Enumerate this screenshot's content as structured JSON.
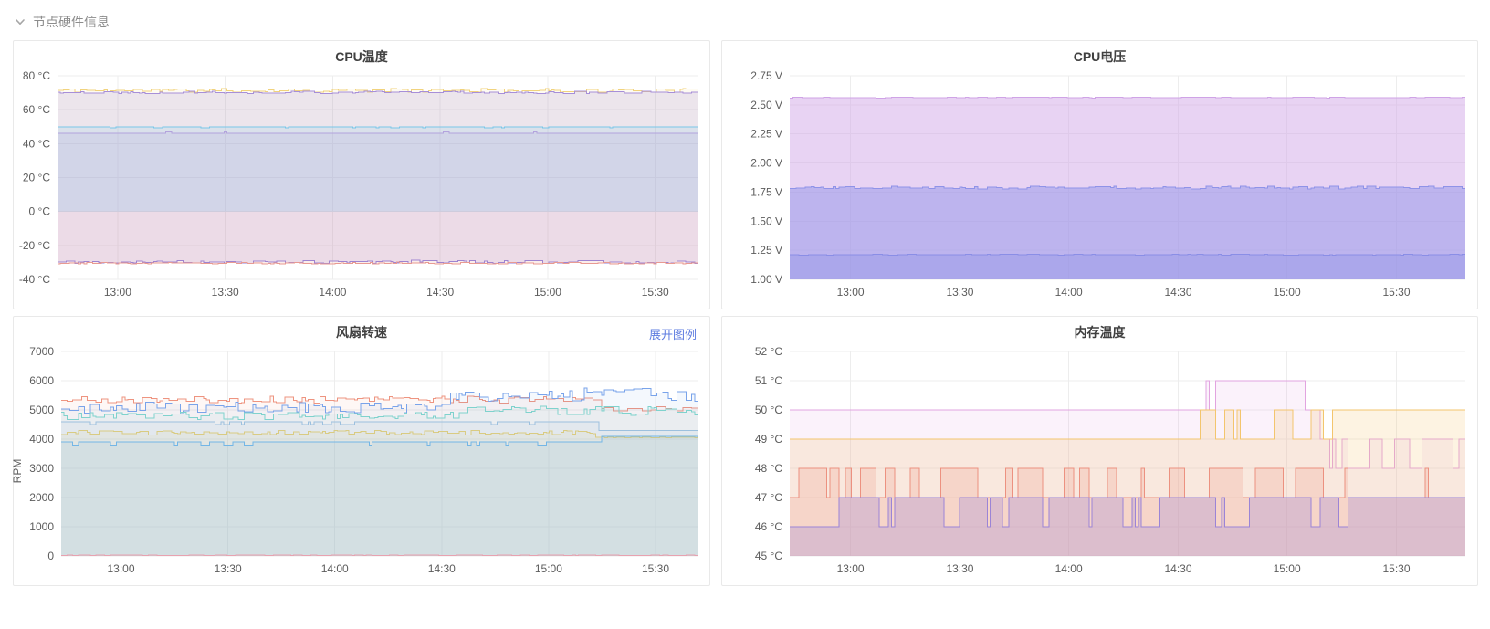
{
  "header": {
    "title": "节点硬件信息",
    "collapse_icon": "chevron-down"
  },
  "colors": {
    "link": "#5e7ce0",
    "title": "#404040",
    "axis_text": "#5c5c5c",
    "grid": "#ededed"
  },
  "chart_data": [
    {
      "type": "area",
      "title": "CPU温度",
      "ylim": [
        -40,
        80
      ],
      "yticks": [
        {
          "v": 80,
          "label": "80 °C"
        },
        {
          "v": 60,
          "label": "60 °C"
        },
        {
          "v": 40,
          "label": "40 °C"
        },
        {
          "v": 20,
          "label": "20 °C"
        },
        {
          "v": 0,
          "label": "0 °C"
        },
        {
          "v": -20,
          "label": "-20 °C"
        },
        {
          "v": -40,
          "label": "-40 °C"
        }
      ],
      "xticks": [
        {
          "f": 0.094,
          "label": "13:00"
        },
        {
          "f": 0.262,
          "label": "13:30"
        },
        {
          "f": 0.43,
          "label": "14:00"
        },
        {
          "f": 0.598,
          "label": "14:30"
        },
        {
          "f": 0.766,
          "label": "15:00"
        },
        {
          "f": 0.934,
          "label": "15:30"
        }
      ],
      "series": [
        {
          "name": "cpu-temp-yellow-high",
          "color": "#f1d37d",
          "fill_opacity": 0.1,
          "fill_to": 0,
          "kind": "noisy",
          "seed": 11,
          "levels": [
            {
              "until": 1,
              "base": 71.3,
              "noise": 1.1
            }
          ]
        },
        {
          "name": "cpu-temp-purple-high",
          "color": "#a78fd8",
          "fill_opacity": 0.2,
          "fill_to": 0,
          "kind": "noisy",
          "seed": 22,
          "levels": [
            {
              "until": 1,
              "base": 70.2,
              "noise": 0.7
            }
          ]
        },
        {
          "name": "cpu-temp-cyan-mid",
          "color": "#79c6e9",
          "fill_opacity": 0.15,
          "fill_to": 0,
          "kind": "toggle",
          "seed": 33,
          "levels": [
            {
              "until": 1,
              "lo": 49.2,
              "hi": 50,
              "p": 0.85
            }
          ]
        },
        {
          "name": "cpu-temp-purple-mid",
          "color": "#b3a3dd",
          "fill_opacity": 0.2,
          "fill_to": 0,
          "kind": "toggle",
          "seed": 44,
          "levels": [
            {
              "until": 1,
              "lo": 46.2,
              "hi": 47,
              "p": 0.08
            }
          ]
        },
        {
          "name": "cpu-temp-purple-low",
          "color": "#8f7fdf",
          "fill_opacity": 0.16,
          "fill_to": 0,
          "kind": "noisy",
          "seed": 55,
          "levels": [
            {
              "until": 1,
              "base": -29.7,
              "noise": 0.9
            }
          ]
        },
        {
          "name": "cpu-temp-red-low",
          "color": "#e89a92",
          "fill_opacity": 0.18,
          "fill_to": 0,
          "kind": "noisy",
          "seed": 66,
          "levels": [
            {
              "until": 1,
              "base": -30.4,
              "noise": 0.5
            }
          ]
        }
      ]
    },
    {
      "type": "area",
      "title": "CPU电压",
      "ylim": [
        1.0,
        2.75
      ],
      "yticks": [
        {
          "v": 2.75,
          "label": "2.75 V"
        },
        {
          "v": 2.5,
          "label": "2.50 V"
        },
        {
          "v": 2.25,
          "label": "2.25 V"
        },
        {
          "v": 2.0,
          "label": "2.00 V"
        },
        {
          "v": 1.75,
          "label": "1.75 V"
        },
        {
          "v": 1.5,
          "label": "1.50 V"
        },
        {
          "v": 1.25,
          "label": "1.25 V"
        },
        {
          "v": 1.0,
          "label": "1.00 V"
        }
      ],
      "xticks": [
        {
          "f": 0.09,
          "label": "13:00"
        },
        {
          "f": 0.252,
          "label": "13:30"
        },
        {
          "f": 0.413,
          "label": "14:00"
        },
        {
          "f": 0.575,
          "label": "14:30"
        },
        {
          "f": 0.736,
          "label": "15:00"
        },
        {
          "f": 0.898,
          "label": "15:30"
        }
      ],
      "series": [
        {
          "name": "cpu-volt-2v56",
          "color": "#cfa3e6",
          "fill_opacity": 0.48,
          "kind": "noisy",
          "seed": 7,
          "levels": [
            {
              "until": 1,
              "base": 2.563,
              "noise": 0.004
            }
          ]
        },
        {
          "name": "cpu-volt-1v79",
          "color": "#8f93e8",
          "fill_opacity": 0.48,
          "kind": "noisy",
          "seed": 8,
          "levels": [
            {
              "until": 1,
              "base": 1.79,
              "noise": 0.012
            }
          ]
        },
        {
          "name": "cpu-volt-1v21",
          "color": "#8a8ee6",
          "fill_opacity": 0.35,
          "kind": "noisy",
          "seed": 9,
          "levels": [
            {
              "until": 1,
              "base": 1.212,
              "noise": 0.003
            }
          ]
        }
      ]
    },
    {
      "type": "area",
      "title": "风扇转速",
      "legend_link": "展开图例",
      "ylabel": "RPM",
      "ylim": [
        0,
        7000
      ],
      "yticks": [
        {
          "v": 7000,
          "label": "7000"
        },
        {
          "v": 6000,
          "label": "6000"
        },
        {
          "v": 5000,
          "label": "5000"
        },
        {
          "v": 4000,
          "label": "4000"
        },
        {
          "v": 3000,
          "label": "3000"
        },
        {
          "v": 2000,
          "label": "2000"
        },
        {
          "v": 1000,
          "label": "1000"
        },
        {
          "v": 0,
          "label": "0"
        }
      ],
      "xticks": [
        {
          "f": 0.094,
          "label": "13:00"
        },
        {
          "f": 0.262,
          "label": "13:30"
        },
        {
          "f": 0.43,
          "label": "14:00"
        },
        {
          "f": 0.598,
          "label": "14:30"
        },
        {
          "f": 0.766,
          "label": "15:00"
        },
        {
          "f": 0.934,
          "label": "15:30"
        }
      ],
      "series": [
        {
          "name": "fan-red",
          "color": "#ee9480",
          "fill_opacity": 0.08,
          "kind": "noisy",
          "seed": 21,
          "levels": [
            {
              "until": 0.84,
              "base": 5350,
              "noise": 130
            },
            {
              "until": 1,
              "base": 5030,
              "noise": 90
            }
          ]
        },
        {
          "name": "fan-blue",
          "color": "#79a3ea",
          "fill_opacity": 0.08,
          "kind": "noisy",
          "seed": 32,
          "levels": [
            {
              "until": 0.6,
              "base": 5080,
              "noise": 190
            },
            {
              "until": 1,
              "base": 5520,
              "noise": 230
            }
          ]
        },
        {
          "name": "fan-teal",
          "color": "#7fd2cd",
          "fill_opacity": 0.08,
          "kind": "noisy",
          "seed": 43,
          "levels": [
            {
              "until": 0.62,
              "base": 4790,
              "noise": 130
            },
            {
              "until": 1,
              "base": 4960,
              "noise": 170
            }
          ]
        },
        {
          "name": "fan-steelblue",
          "color": "#9cc0de",
          "fill_opacity": 0.1,
          "kind": "toggle",
          "seed": 54,
          "levels": [
            {
              "until": 0.84,
              "lo": 4500,
              "hi": 4600,
              "p": 0.9
            },
            {
              "until": 1,
              "lo": 4300,
              "hi": 4300,
              "p": 1
            }
          ]
        },
        {
          "name": "fan-yellow",
          "color": "#d9cb82",
          "fill_opacity": 0.1,
          "kind": "noisy",
          "seed": 65,
          "levels": [
            {
              "until": 0.84,
              "base": 4220,
              "noise": 80
            },
            {
              "until": 1,
              "base": 4060,
              "noise": 15
            }
          ]
        },
        {
          "name": "fan-blue-low",
          "color": "#73b6e6",
          "fill_opacity": 0.12,
          "kind": "toggle",
          "seed": 76,
          "levels": [
            {
              "until": 0.84,
              "lo": 3800,
              "hi": 3900,
              "p": 0.88
            },
            {
              "until": 1,
              "lo": 4100,
              "hi": 4100,
              "p": 1
            }
          ]
        },
        {
          "name": "fan-pink-zero",
          "color": "#e8a2b0",
          "fill_opacity": 0.15,
          "kind": "noisy",
          "seed": 87,
          "levels": [
            {
              "until": 1,
              "base": 25,
              "noise": 5
            }
          ]
        }
      ]
    },
    {
      "type": "area",
      "title": "内存温度",
      "ylim": [
        45,
        52
      ],
      "yticks": [
        {
          "v": 52,
          "label": "52 °C"
        },
        {
          "v": 51,
          "label": "51 °C"
        },
        {
          "v": 50,
          "label": "50 °C"
        },
        {
          "v": 49,
          "label": "49 °C"
        },
        {
          "v": 48,
          "label": "48 °C"
        },
        {
          "v": 47,
          "label": "47 °C"
        },
        {
          "v": 46,
          "label": "46 °C"
        },
        {
          "v": 45,
          "label": "45 °C"
        }
      ],
      "xticks": [
        {
          "f": 0.09,
          "label": "13:00"
        },
        {
          "f": 0.252,
          "label": "13:30"
        },
        {
          "f": 0.413,
          "label": "14:00"
        },
        {
          "f": 0.575,
          "label": "14:30"
        },
        {
          "f": 0.736,
          "label": "15:00"
        },
        {
          "f": 0.898,
          "label": "15:30"
        }
      ],
      "series": [
        {
          "name": "mem-temp-orchid",
          "color": "#e2a4e0",
          "fill_opacity": 0.14,
          "kind": "toggle",
          "seed": 12,
          "levels": [
            {
              "until": 0.6,
              "lo": 50,
              "hi": 50,
              "p": 1
            },
            {
              "until": 0.63,
              "lo": 50,
              "hi": 51,
              "p": 0.35
            },
            {
              "until": 0.72,
              "lo": 50,
              "hi": 51,
              "p": 0.8
            },
            {
              "until": 0.76,
              "lo": 50,
              "hi": 51,
              "p": 0.45
            },
            {
              "until": 0.78,
              "lo": 50,
              "hi": 50,
              "p": 1
            },
            {
              "until": 1,
              "lo": 48,
              "hi": 49,
              "p": 0.55
            }
          ]
        },
        {
          "name": "mem-temp-yellow",
          "color": "#f3c56d",
          "fill_opacity": 0.2,
          "kind": "toggle",
          "seed": 23,
          "levels": [
            {
              "until": 0.6,
              "lo": 49,
              "hi": 49,
              "p": 1
            },
            {
              "until": 0.79,
              "lo": 49,
              "hi": 50,
              "p": 0.5
            },
            {
              "until": 1,
              "lo": 50,
              "hi": 50,
              "p": 1
            }
          ]
        },
        {
          "name": "mem-temp-salmon",
          "color": "#ec9180",
          "fill_opacity": 0.22,
          "kind": "toggle",
          "seed": 34,
          "levels": [
            {
              "until": 0.8,
              "lo": 47,
              "hi": 48,
              "p": 0.45
            },
            {
              "until": 0.96,
              "lo": 47,
              "hi": 48,
              "p": 0.08
            },
            {
              "until": 1,
              "lo": 47,
              "hi": 47,
              "p": 1
            }
          ]
        },
        {
          "name": "mem-temp-purple",
          "color": "#9b84d6",
          "fill_opacity": 0.28,
          "kind": "toggle",
          "seed": 45,
          "levels": [
            {
              "until": 0.07,
              "lo": 46,
              "hi": 46,
              "p": 1
            },
            {
              "until": 0.9,
              "lo": 46,
              "hi": 47,
              "p": 0.72
            },
            {
              "until": 0.96,
              "lo": 46,
              "hi": 47,
              "p": 0.85
            },
            {
              "until": 1,
              "lo": 47,
              "hi": 47,
              "p": 1
            }
          ]
        }
      ]
    }
  ]
}
